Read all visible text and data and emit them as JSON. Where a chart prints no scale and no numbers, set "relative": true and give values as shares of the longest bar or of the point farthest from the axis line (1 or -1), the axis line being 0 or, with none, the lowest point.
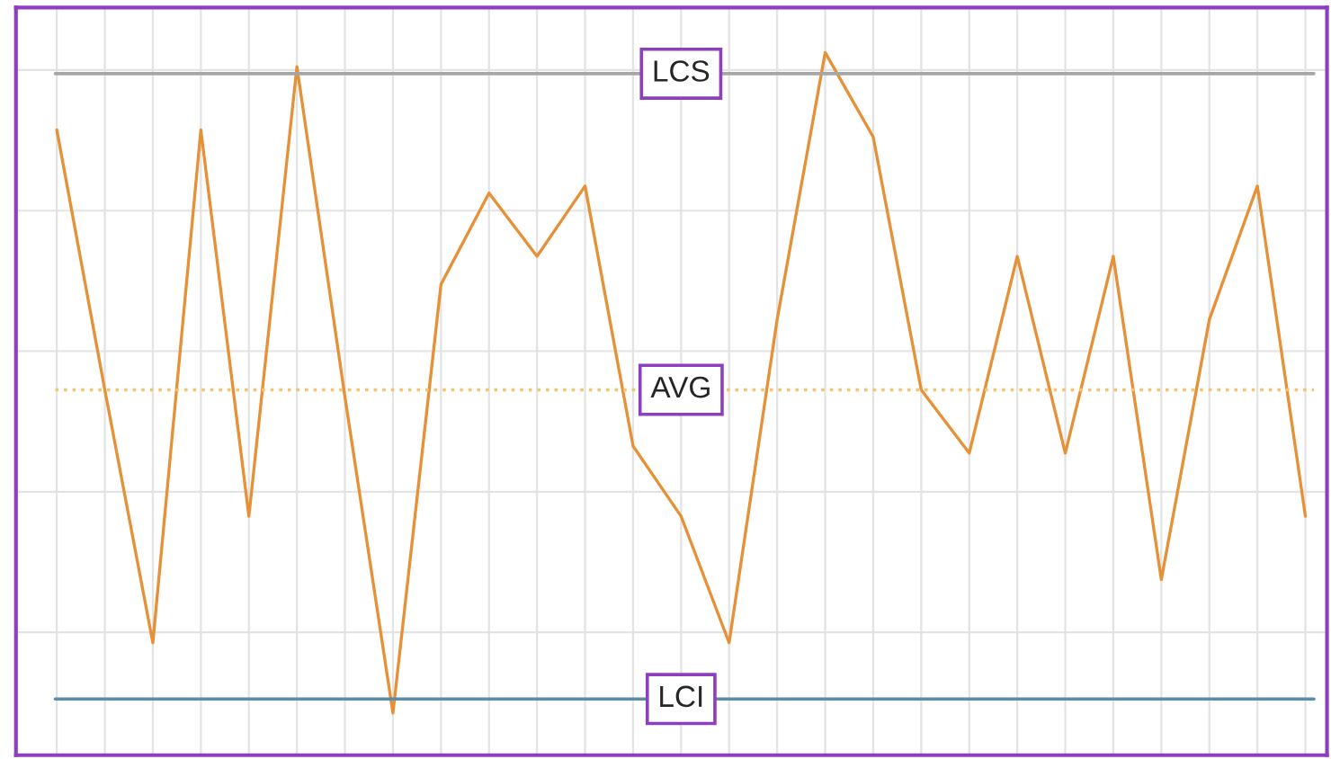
{
  "chart_data": {
    "type": "line",
    "relative": true,
    "categories": [
      null,
      null,
      null,
      null,
      null,
      null,
      null,
      null,
      null,
      null,
      null,
      null,
      null,
      null,
      null,
      null,
      null,
      null,
      null,
      null,
      null,
      null,
      null,
      null,
      null,
      null,
      null
    ],
    "series": [
      {
        "color": "#e69138",
        "values": [
          0.89,
          0.52,
          0.16,
          0.89,
          0.34,
          0.98,
          0.51,
          0.06,
          0.67,
          0.8,
          0.71,
          0.81,
          0.44,
          0.34,
          0.16,
          0.62,
          1,
          0.88,
          0.52,
          0.43,
          0.71,
          0.43,
          0.71,
          0.25,
          0.62,
          0.81,
          0.34
        ]
      }
    ],
    "ref_lines": [
      {
        "axis": "y",
        "value": 0.97,
        "label": "LCS",
        "color": "#a6a6a6"
      },
      {
        "axis": "y",
        "value": 0.52,
        "label": "AVG",
        "color": "#f6c46e",
        "line_style": "dotted"
      },
      {
        "axis": "y",
        "value": 0.08,
        "label": "LCI",
        "color": "#5b8ca8"
      }
    ],
    "grid": true,
    "legend": false,
    "marker": "none",
    "line_style": "solid"
  }
}
